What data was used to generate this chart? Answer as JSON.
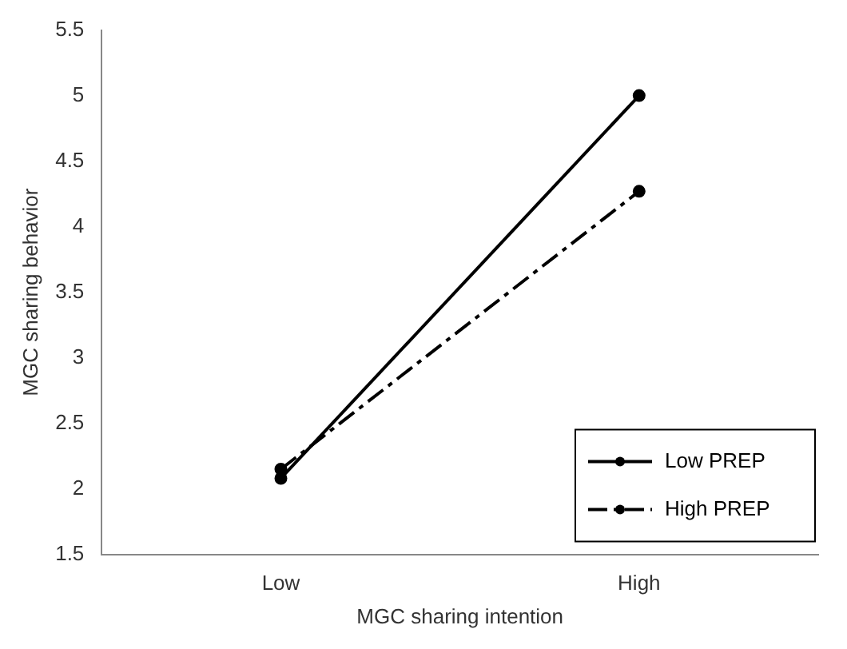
{
  "chart_data": {
    "type": "line",
    "xlabel": "MGC sharing intention",
    "ylabel": "MGC sharing behavior",
    "categories": [
      "Low",
      "High"
    ],
    "series": [
      {
        "name": "Low PREP",
        "color": "#000000",
        "values": [
          2.08,
          5.0
        ],
        "line_style": "solid"
      },
      {
        "name": "High PREP",
        "color": "#000000",
        "values": [
          2.15,
          4.27
        ],
        "line_style": "dashed"
      }
    ],
    "ylim": [
      1.5,
      5.5
    ],
    "yticks": [
      1.5,
      2,
      2.5,
      3,
      3.5,
      4,
      4.5,
      5,
      5.5
    ],
    "grid": false,
    "legend": "bottom right",
    "marker": "circle"
  }
}
